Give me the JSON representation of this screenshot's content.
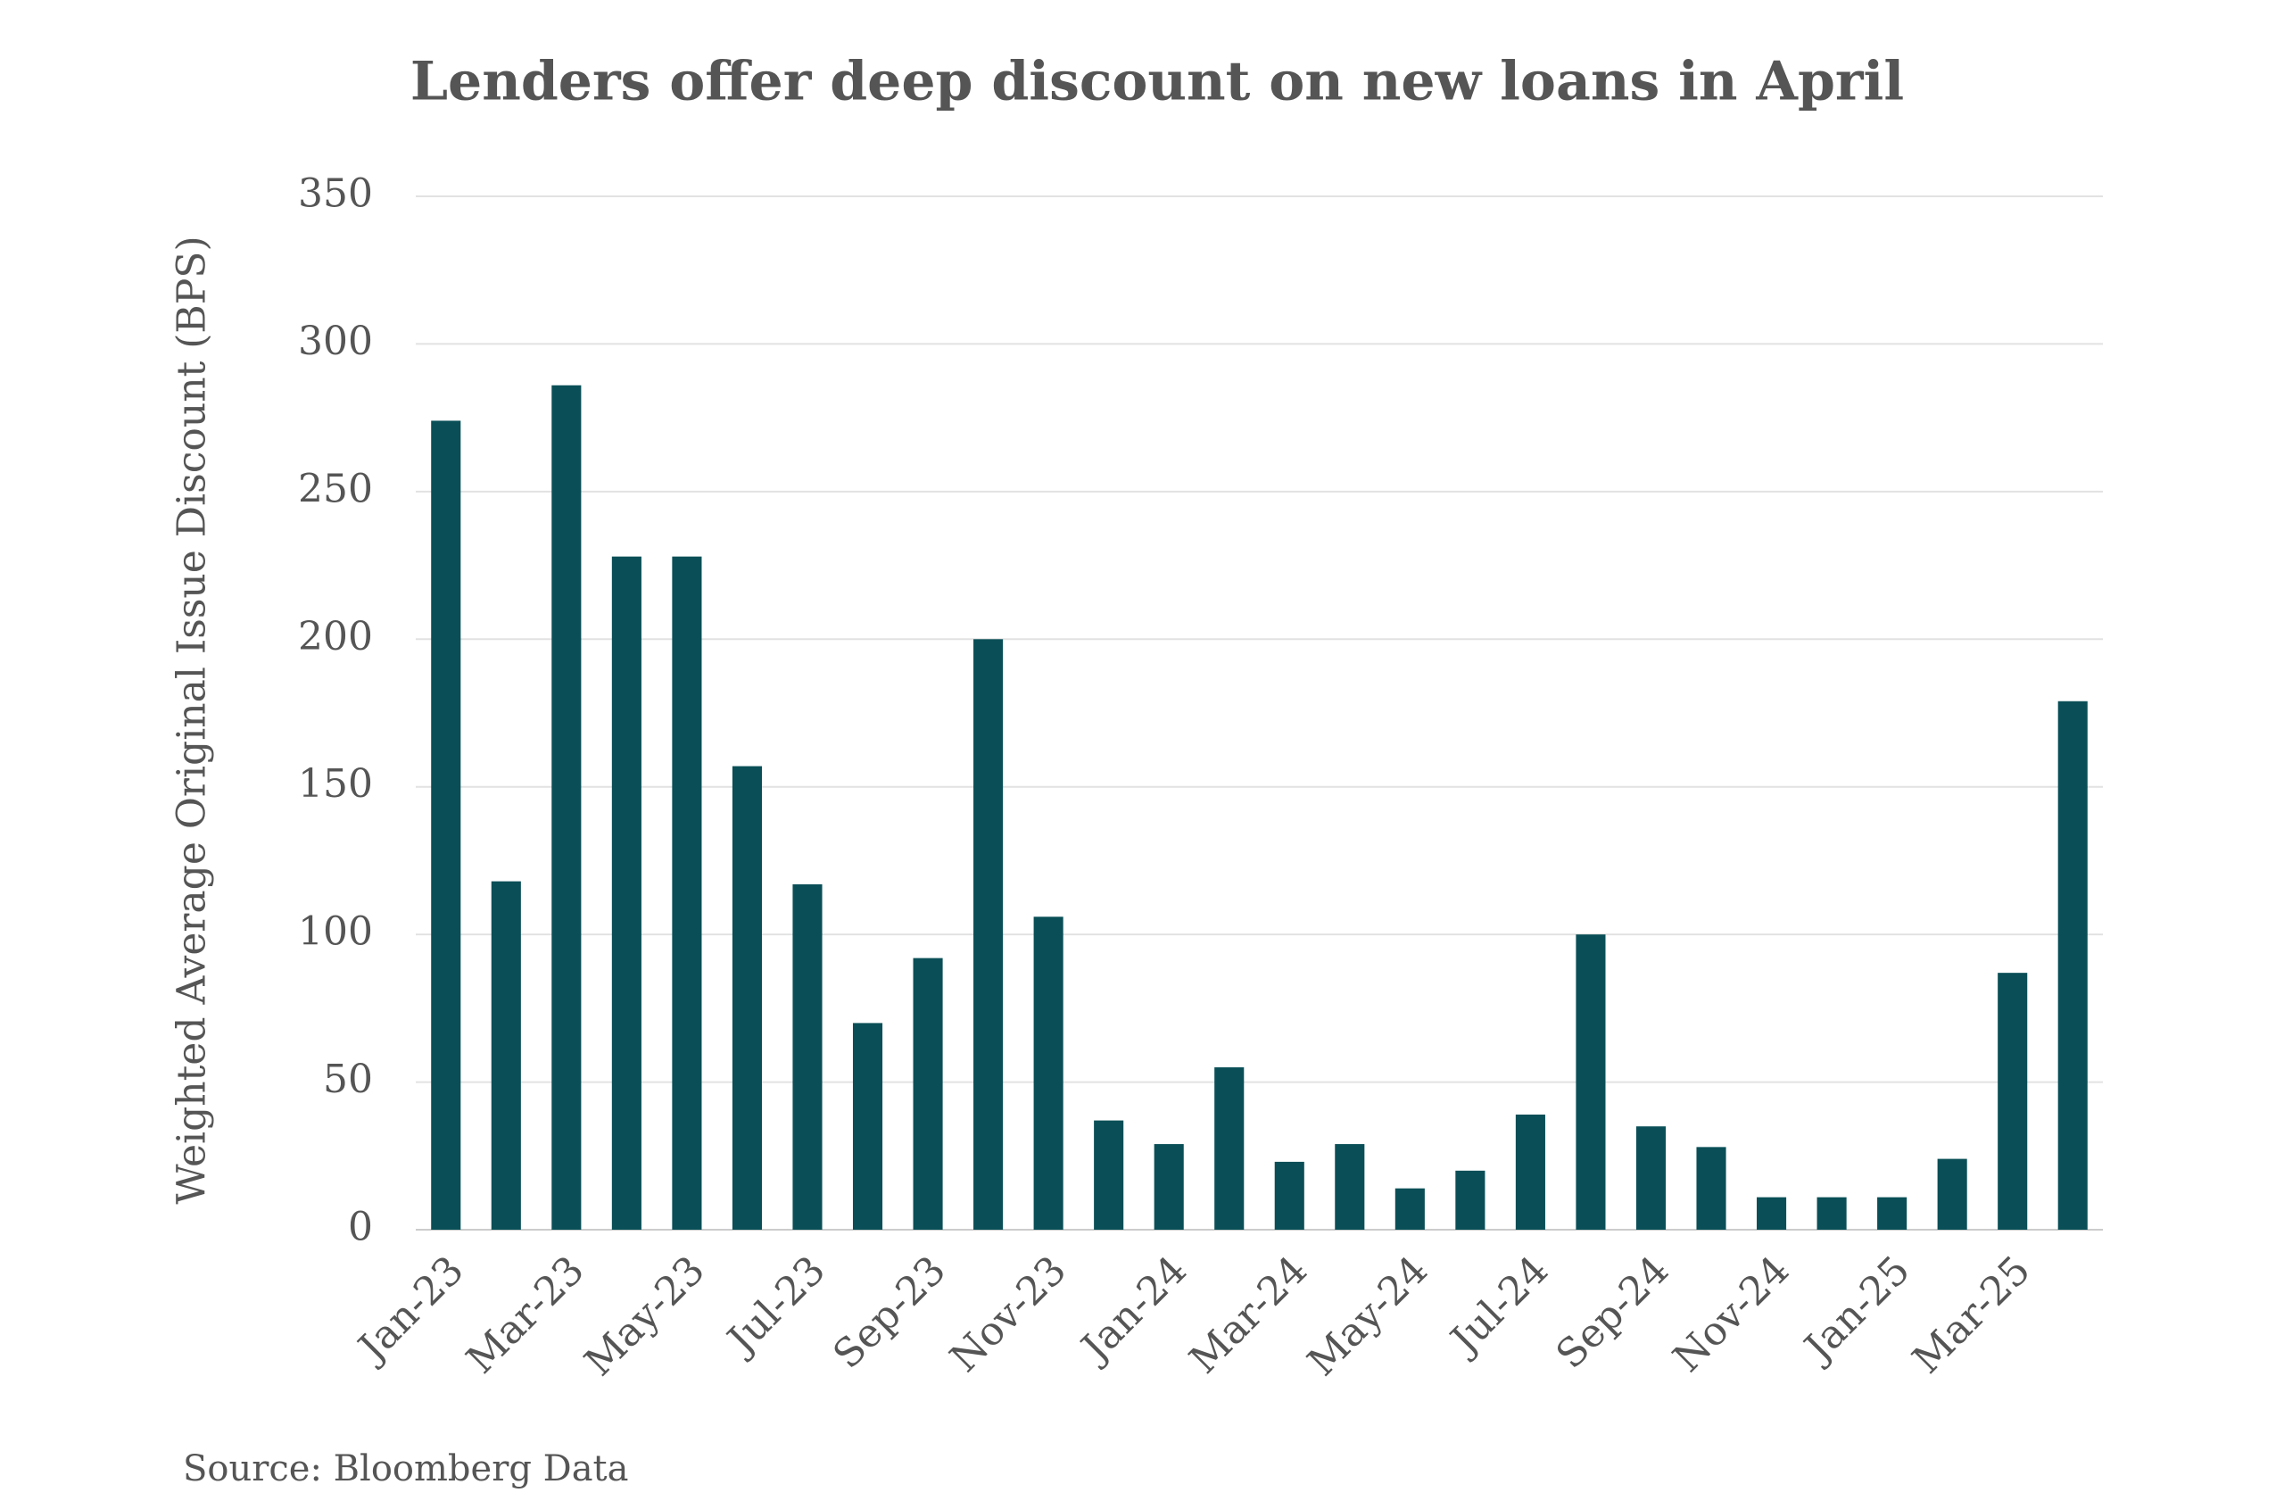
{
  "chart_data": {
    "type": "bar",
    "title": "Lenders offer deep discount on new loans in April",
    "y_label": "Weighted Average Original Issue Discount (BPS)",
    "source": "Source: Bloomberg Data",
    "categories": [
      "Jan-23",
      null,
      "Mar-23",
      null,
      "May-23",
      null,
      "Jul-23",
      null,
      "Sep-23",
      null,
      "Nov-23",
      null,
      "Jan-24",
      null,
      "Mar-24",
      null,
      "May-24",
      null,
      "Jul-24",
      null,
      "Sep-24",
      null,
      "Nov-24",
      null,
      "Jan-25",
      null,
      "Mar-25",
      null
    ],
    "values": [
      274,
      118,
      286,
      228,
      228,
      157,
      117,
      70,
      92,
      200,
      106,
      37,
      29,
      55,
      23,
      29,
      14,
      20,
      39,
      100,
      35,
      28,
      11,
      11,
      11,
      24,
      87,
      179
    ],
    "color": "#0a4f57",
    "ylim": [
      0,
      350
    ],
    "yticks": [
      0,
      50,
      100,
      150,
      200,
      250,
      300,
      350
    ],
    "grid": true
  }
}
